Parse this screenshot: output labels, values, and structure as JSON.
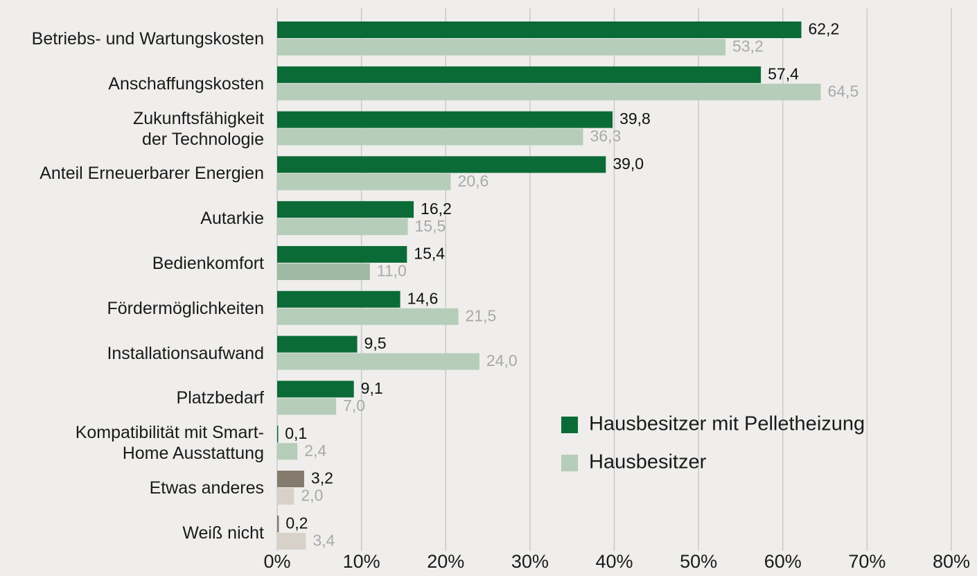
{
  "chart_data": {
    "type": "bar",
    "orientation": "horizontal",
    "categories": [
      "Betriebs- und Wartungskosten",
      "Anschaffungskosten",
      "Zukunftsfähigkeit\nder Technologie",
      "Anteil Erneuerbarer Energien",
      "Autarkie",
      "Bedienkomfort",
      "Fördermöglichkeiten",
      "Installationsaufwand",
      "Platzbedarf",
      "Kompatibilität mit Smart-\nHome Ausstattung",
      "Etwas anderes",
      "Weiß nicht"
    ],
    "series": [
      {
        "name": "Hausbesitzer mit Pelletheizung",
        "color": "#0b6b36",
        "colors": [
          "#0b6b36",
          "#0b6b36",
          "#0b6b36",
          "#0b6b36",
          "#0b6b36",
          "#0b6b36",
          "#0b6b36",
          "#0b6b36",
          "#0b6b36",
          "#0b6b36",
          "#857a6e",
          "#857a6e"
        ],
        "values": [
          62.2,
          57.4,
          39.8,
          39.0,
          16.2,
          15.4,
          14.6,
          9.5,
          9.1,
          0.1,
          3.2,
          0.2
        ],
        "value_labels": [
          "62,2",
          "57,4",
          "39,8",
          "39,0",
          "16,2",
          "15,4",
          "14,6",
          "9,5",
          "9,1",
          "0,1",
          "3,2",
          "0,2"
        ]
      },
      {
        "name": "Hausbesitzer",
        "color": "#b6cdb9",
        "colors": [
          "#b6cdb9",
          "#b6cdb9",
          "#b6cdb9",
          "#b6cdb9",
          "#b6cdb9",
          "#9fba a3",
          "#b6cdb9",
          "#b6cdb9",
          "#b6cdb9",
          "#b6cdb9",
          "#d8d1c9",
          "#d8d1c9"
        ],
        "values": [
          53.2,
          64.5,
          36.3,
          20.6,
          15.5,
          11.0,
          21.5,
          24.0,
          7.0,
          2.4,
          2.0,
          3.4
        ],
        "value_labels": [
          "53,2",
          "64,5",
          "36,3",
          "20,6",
          "15,5",
          "11,0",
          "21,5",
          "24,0",
          "7,0",
          "2,4",
          "2,0",
          "3,4"
        ]
      }
    ],
    "xlim": [
      0,
      80
    ],
    "xticks": [
      {
        "value": 0,
        "label": "0%"
      },
      {
        "value": 10,
        "label": "10%"
      },
      {
        "value": 20,
        "label": "20%"
      },
      {
        "value": 30,
        "label": "30%"
      },
      {
        "value": 40,
        "label": "40%"
      },
      {
        "value": 50,
        "label": "50%"
      },
      {
        "value": 60,
        "label": "60%"
      },
      {
        "value": 70,
        "label": "70%"
      },
      {
        "value": 80,
        "label": "80%"
      }
    ],
    "grid": true
  }
}
